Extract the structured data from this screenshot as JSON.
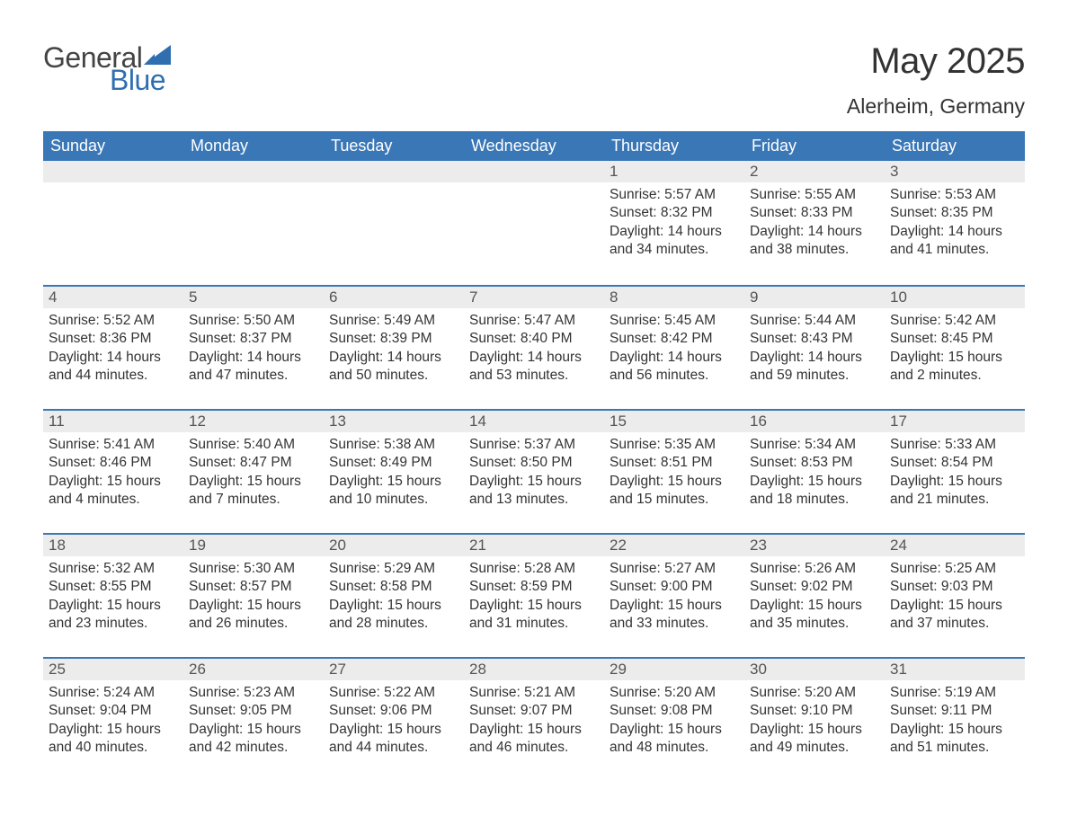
{
  "logo": {
    "text_general": "General",
    "text_blue": "Blue",
    "flag_color": "#2f6fb0"
  },
  "title": "May 2025",
  "location": "Alerheim, Germany",
  "colors": {
    "header_bg": "#3a77b6",
    "header_text": "#ffffff",
    "daynum_bg": "#ececec",
    "row_border": "#3a77b6",
    "body_text": "#333333",
    "page_bg": "#ffffff"
  },
  "typography": {
    "title_fontsize": 40,
    "location_fontsize": 23,
    "header_fontsize": 18,
    "daynum_fontsize": 17,
    "body_fontsize": 15.5,
    "font_family": "Arial"
  },
  "columns": [
    "Sunday",
    "Monday",
    "Tuesday",
    "Wednesday",
    "Thursday",
    "Friday",
    "Saturday"
  ],
  "weeks": [
    [
      null,
      null,
      null,
      null,
      {
        "n": "1",
        "sunrise": "5:57 AM",
        "sunset": "8:32 PM",
        "dl_h": "14",
        "dl_m": "34"
      },
      {
        "n": "2",
        "sunrise": "5:55 AM",
        "sunset": "8:33 PM",
        "dl_h": "14",
        "dl_m": "38"
      },
      {
        "n": "3",
        "sunrise": "5:53 AM",
        "sunset": "8:35 PM",
        "dl_h": "14",
        "dl_m": "41"
      }
    ],
    [
      {
        "n": "4",
        "sunrise": "5:52 AM",
        "sunset": "8:36 PM",
        "dl_h": "14",
        "dl_m": "44"
      },
      {
        "n": "5",
        "sunrise": "5:50 AM",
        "sunset": "8:37 PM",
        "dl_h": "14",
        "dl_m": "47"
      },
      {
        "n": "6",
        "sunrise": "5:49 AM",
        "sunset": "8:39 PM",
        "dl_h": "14",
        "dl_m": "50"
      },
      {
        "n": "7",
        "sunrise": "5:47 AM",
        "sunset": "8:40 PM",
        "dl_h": "14",
        "dl_m": "53"
      },
      {
        "n": "8",
        "sunrise": "5:45 AM",
        "sunset": "8:42 PM",
        "dl_h": "14",
        "dl_m": "56"
      },
      {
        "n": "9",
        "sunrise": "5:44 AM",
        "sunset": "8:43 PM",
        "dl_h": "14",
        "dl_m": "59"
      },
      {
        "n": "10",
        "sunrise": "5:42 AM",
        "sunset": "8:45 PM",
        "dl_h": "15",
        "dl_m": "2"
      }
    ],
    [
      {
        "n": "11",
        "sunrise": "5:41 AM",
        "sunset": "8:46 PM",
        "dl_h": "15",
        "dl_m": "4"
      },
      {
        "n": "12",
        "sunrise": "5:40 AM",
        "sunset": "8:47 PM",
        "dl_h": "15",
        "dl_m": "7"
      },
      {
        "n": "13",
        "sunrise": "5:38 AM",
        "sunset": "8:49 PM",
        "dl_h": "15",
        "dl_m": "10"
      },
      {
        "n": "14",
        "sunrise": "5:37 AM",
        "sunset": "8:50 PM",
        "dl_h": "15",
        "dl_m": "13"
      },
      {
        "n": "15",
        "sunrise": "5:35 AM",
        "sunset": "8:51 PM",
        "dl_h": "15",
        "dl_m": "15"
      },
      {
        "n": "16",
        "sunrise": "5:34 AM",
        "sunset": "8:53 PM",
        "dl_h": "15",
        "dl_m": "18"
      },
      {
        "n": "17",
        "sunrise": "5:33 AM",
        "sunset": "8:54 PM",
        "dl_h": "15",
        "dl_m": "21"
      }
    ],
    [
      {
        "n": "18",
        "sunrise": "5:32 AM",
        "sunset": "8:55 PM",
        "dl_h": "15",
        "dl_m": "23"
      },
      {
        "n": "19",
        "sunrise": "5:30 AM",
        "sunset": "8:57 PM",
        "dl_h": "15",
        "dl_m": "26"
      },
      {
        "n": "20",
        "sunrise": "5:29 AM",
        "sunset": "8:58 PM",
        "dl_h": "15",
        "dl_m": "28"
      },
      {
        "n": "21",
        "sunrise": "5:28 AM",
        "sunset": "8:59 PM",
        "dl_h": "15",
        "dl_m": "31"
      },
      {
        "n": "22",
        "sunrise": "5:27 AM",
        "sunset": "9:00 PM",
        "dl_h": "15",
        "dl_m": "33"
      },
      {
        "n": "23",
        "sunrise": "5:26 AM",
        "sunset": "9:02 PM",
        "dl_h": "15",
        "dl_m": "35"
      },
      {
        "n": "24",
        "sunrise": "5:25 AM",
        "sunset": "9:03 PM",
        "dl_h": "15",
        "dl_m": "37"
      }
    ],
    [
      {
        "n": "25",
        "sunrise": "5:24 AM",
        "sunset": "9:04 PM",
        "dl_h": "15",
        "dl_m": "40"
      },
      {
        "n": "26",
        "sunrise": "5:23 AM",
        "sunset": "9:05 PM",
        "dl_h": "15",
        "dl_m": "42"
      },
      {
        "n": "27",
        "sunrise": "5:22 AM",
        "sunset": "9:06 PM",
        "dl_h": "15",
        "dl_m": "44"
      },
      {
        "n": "28",
        "sunrise": "5:21 AM",
        "sunset": "9:07 PM",
        "dl_h": "15",
        "dl_m": "46"
      },
      {
        "n": "29",
        "sunrise": "5:20 AM",
        "sunset": "9:08 PM",
        "dl_h": "15",
        "dl_m": "48"
      },
      {
        "n": "30",
        "sunrise": "5:20 AM",
        "sunset": "9:10 PM",
        "dl_h": "15",
        "dl_m": "49"
      },
      {
        "n": "31",
        "sunrise": "5:19 AM",
        "sunset": "9:11 PM",
        "dl_h": "15",
        "dl_m": "51"
      }
    ]
  ],
  "labels": {
    "sunrise": "Sunrise:",
    "sunset": "Sunset:",
    "daylight_prefix": "Daylight:",
    "hours_word": "hours",
    "and_word": "and",
    "minutes_word": "minutes."
  }
}
